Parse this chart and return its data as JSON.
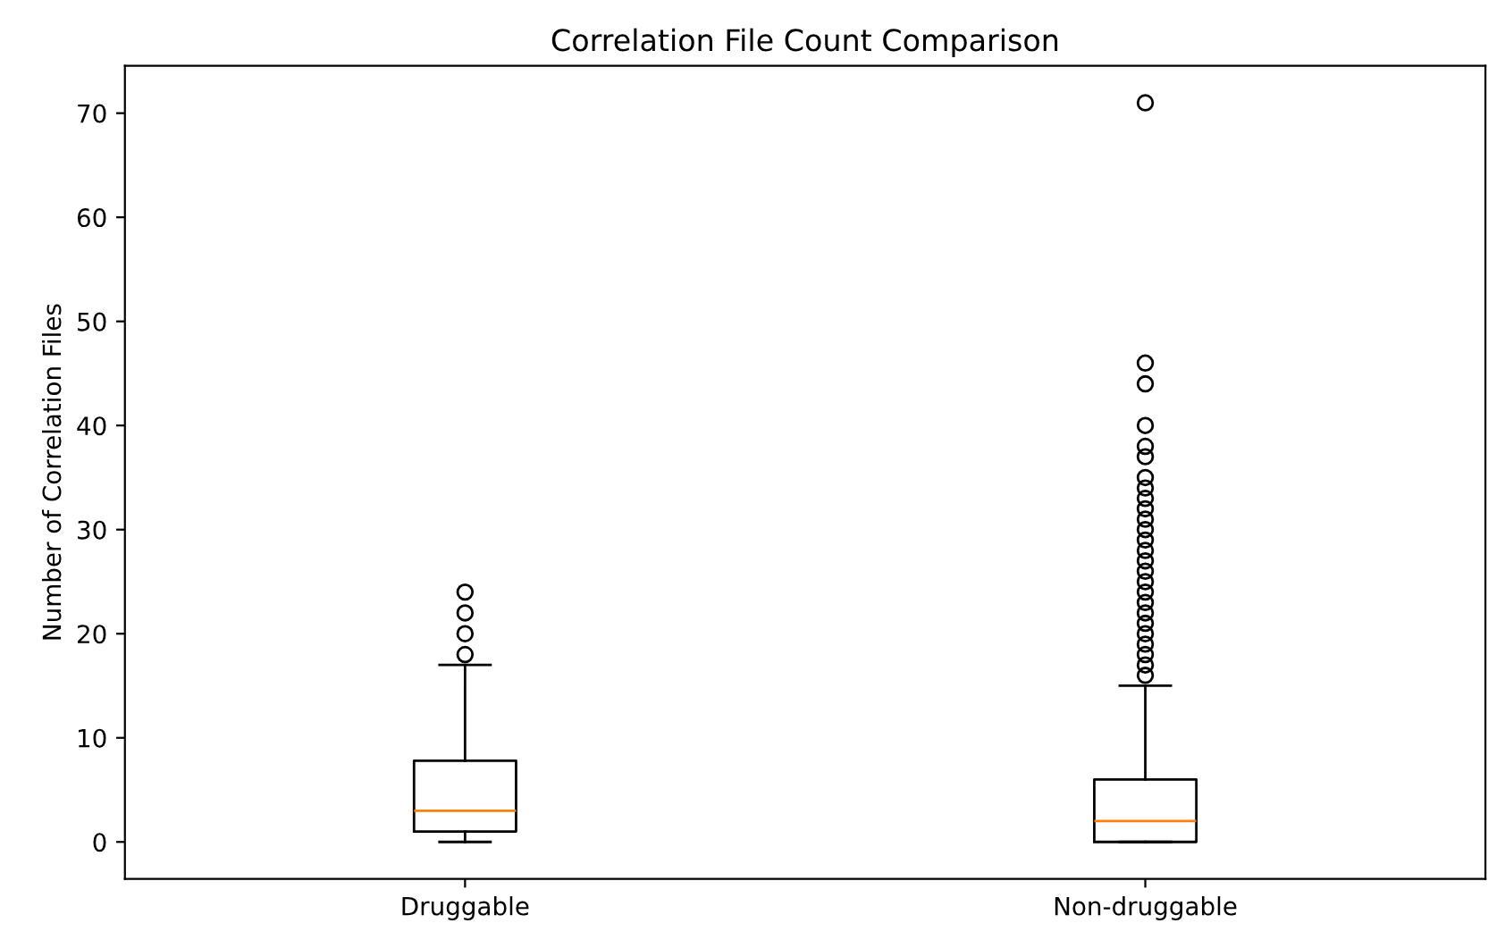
{
  "chart_data": {
    "type": "box",
    "title": "Correlation File Count Comparison",
    "ylabel": "Number of Correlation Files",
    "categories": [
      "Druggable",
      "Non-druggable"
    ],
    "boxes": [
      {
        "low": 0,
        "q1": 1,
        "median": 3,
        "q3": 7.8,
        "high": 17,
        "outliers": [
          18,
          20,
          22,
          24
        ]
      },
      {
        "low": 0,
        "q1": 0,
        "median": 2,
        "q3": 6,
        "high": 15,
        "outliers": [
          16,
          17,
          18,
          19,
          20,
          21,
          22,
          23,
          24,
          25,
          26,
          27,
          28,
          29,
          30,
          31,
          32,
          33,
          34,
          35,
          37,
          38,
          40,
          44,
          46,
          71
        ]
      }
    ],
    "ylim": [
      -3.55,
      74.55
    ],
    "yticks": [
      0,
      10,
      20,
      30,
      40,
      50,
      60,
      70
    ],
    "grid": false
  }
}
